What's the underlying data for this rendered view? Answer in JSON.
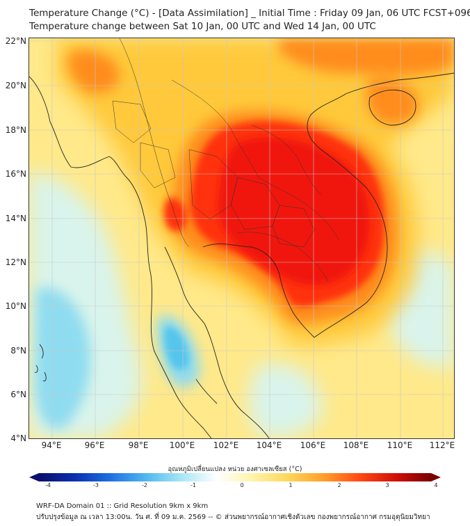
{
  "title_line1": "Temperature Change (°C) - [Data Assimilation] _ Initial Time : Friday 09 Jan, 06 UTC FCST+096",
  "title_line2": "Temperature change between Sat 10 Jan, 00 UTC and Wed 14 Jan, 00 UTC",
  "lat_labels": [
    "22°N",
    "20°N",
    "18°N",
    "16°N",
    "14°N",
    "12°N",
    "10°N",
    "8°N",
    "6°N",
    "4°N"
  ],
  "lon_labels": [
    "94°E",
    "96°E",
    "98°E",
    "100°E",
    "102°E",
    "104°E",
    "106°E",
    "108°E",
    "110°E",
    "112°E"
  ],
  "colorbar": {
    "title": "อุณหภูมิเปลี่ยนแปลง หน่วย องศาเซลเซียส (°C)",
    "ticks": [
      "-4",
      "-3",
      "-2",
      "-1",
      "0",
      "1",
      "2",
      "3",
      "4"
    ],
    "colors": [
      "#08106b",
      "#0a2fb0",
      "#1f6fe0",
      "#4fb8ee",
      "#a8e6f5",
      "#ffffff",
      "#fff3a8",
      "#ffd55a",
      "#ff9e2a",
      "#ff4a12",
      "#d01008",
      "#7a0000"
    ]
  },
  "footer_line1": "WRF-DA Domain 01 :: Grid Resolution 9km x 9km",
  "footer_line2": "ปรับปรุงข้อมูล ณ เวลา 13:00น. วัน ศ. ที่ 09 ม.ค. 2569 -- © ส่วนพยากรณ์อากาศเชิงตัวเลข กองพยากรณ์อากาศ กรมอุตุนิยมวิทยา",
  "field_colors": {
    "background": "#ffe98a",
    "warm_light": "#ffc93a",
    "warm": "#ff8c1e",
    "hot": "#ff3010",
    "core": "#f01208",
    "cool_light": "#d9f4ec",
    "cool": "#8fdcf0",
    "cool_strong": "#55c5ec"
  }
}
